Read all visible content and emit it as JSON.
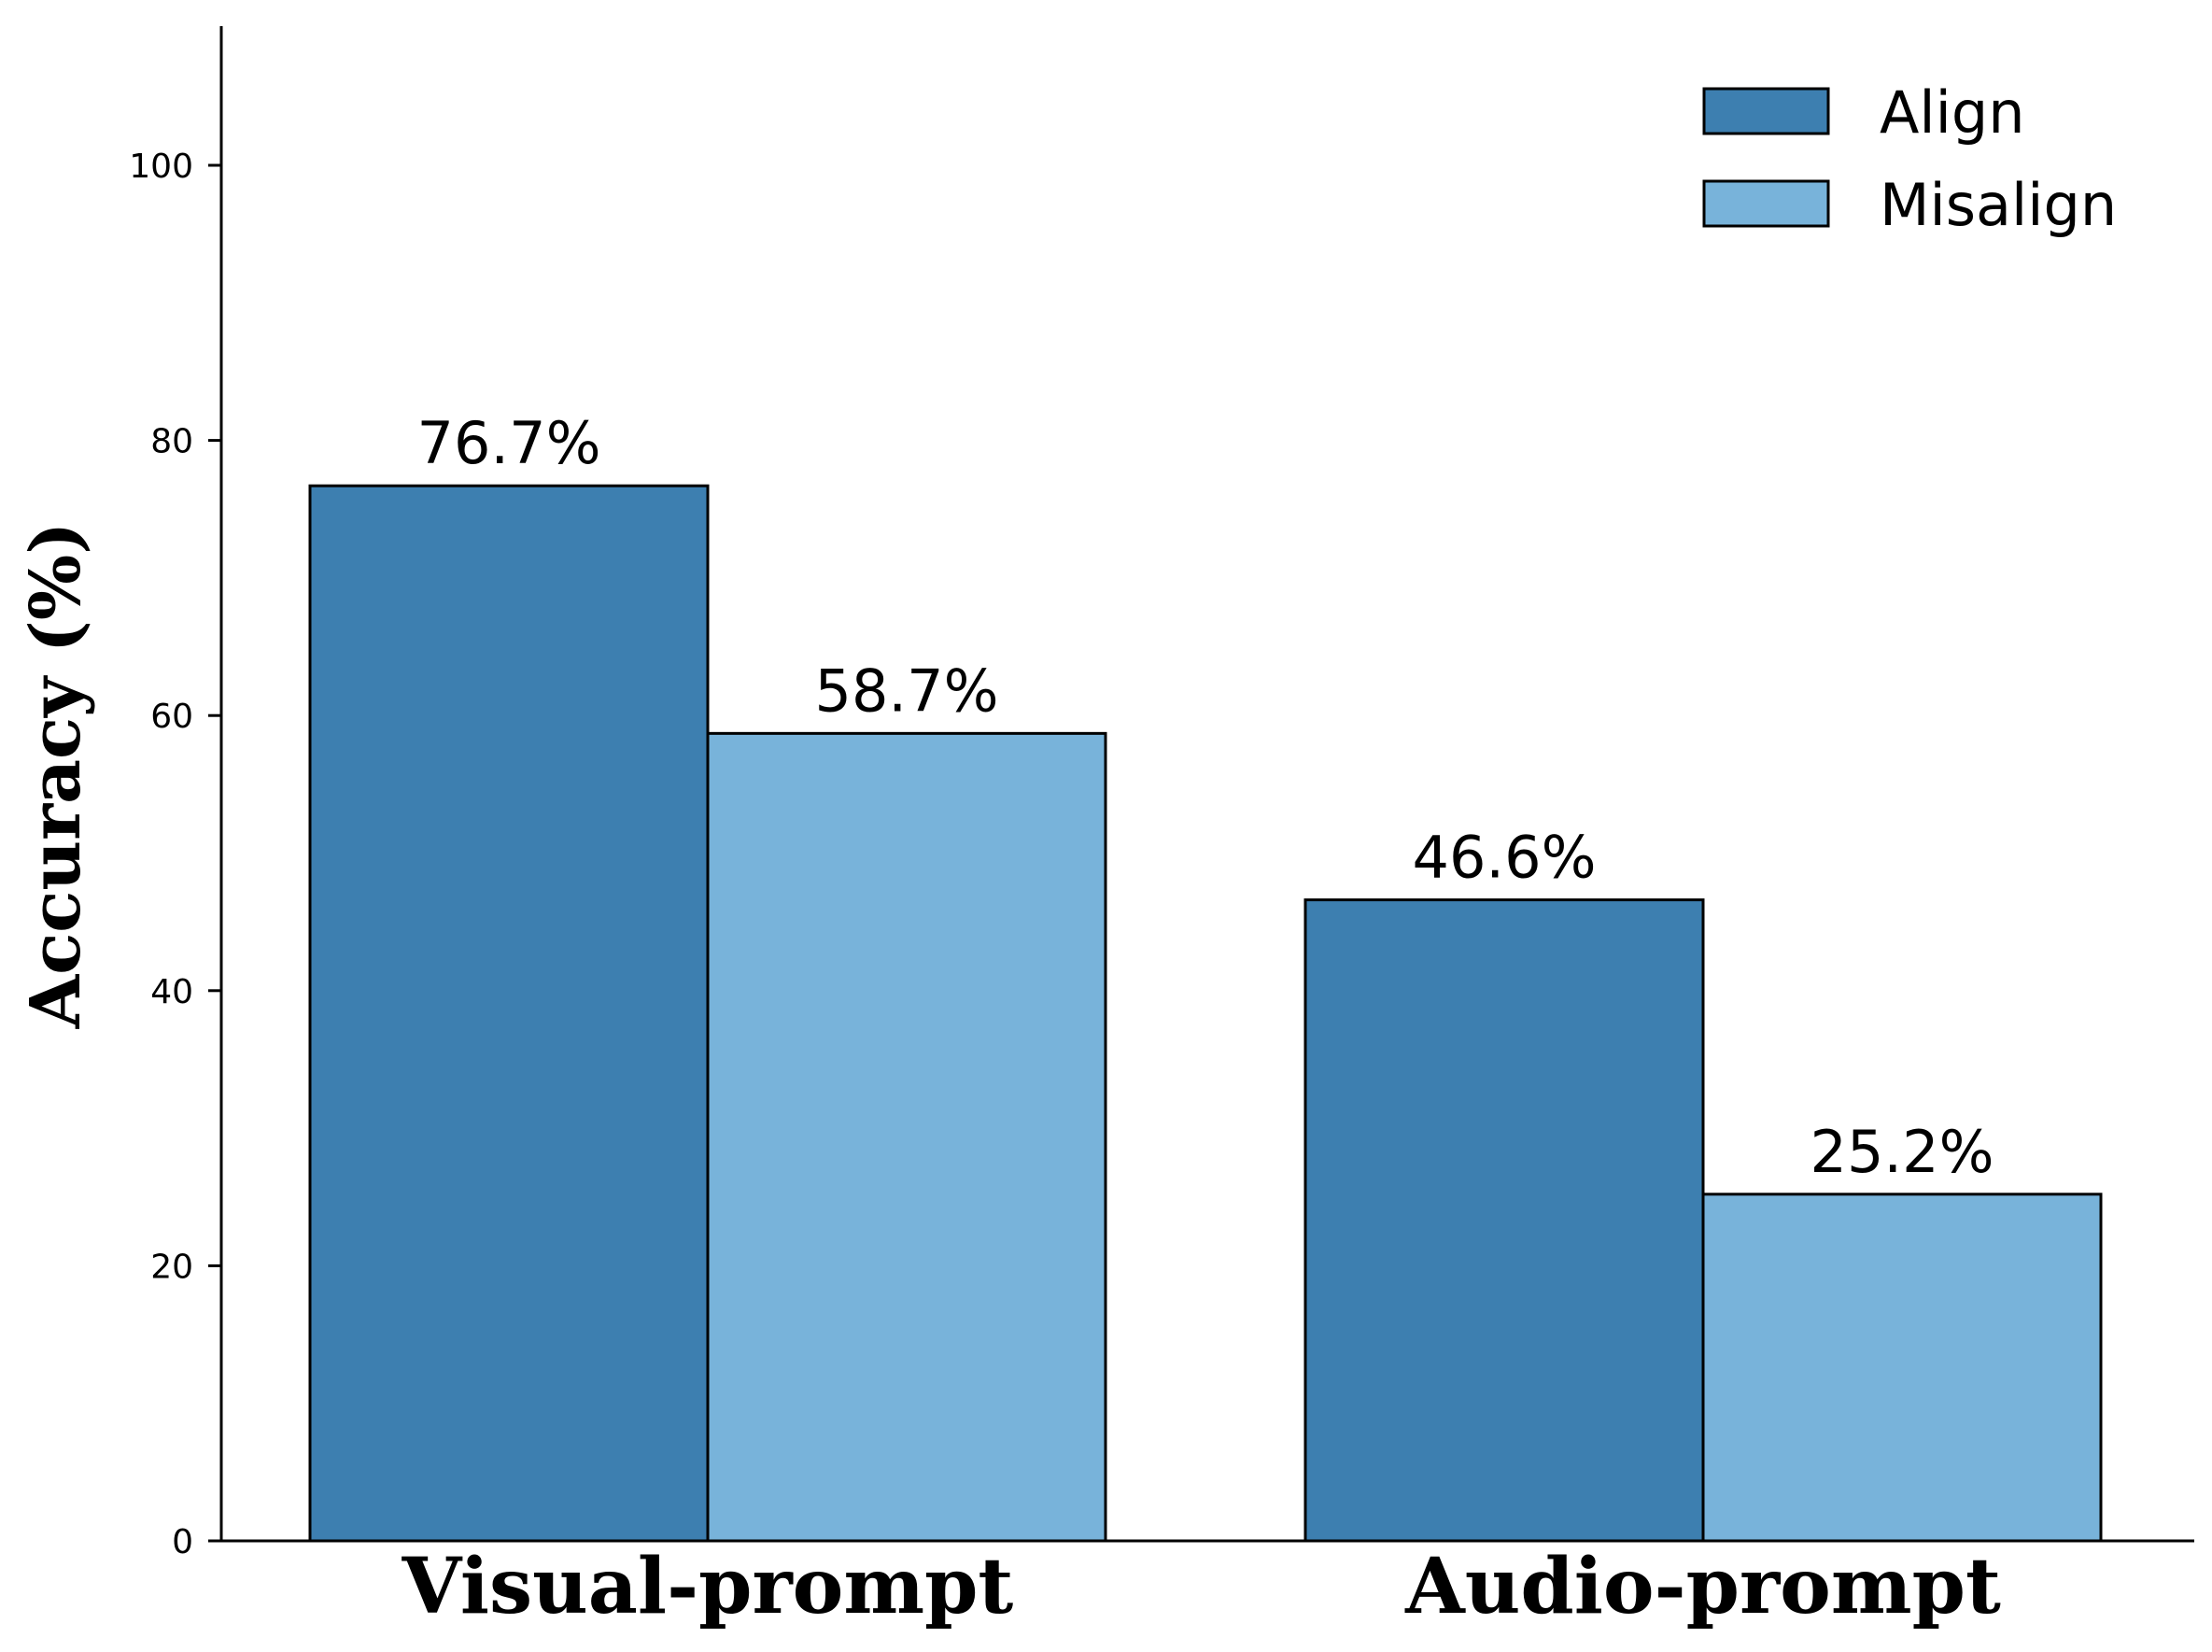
{
  "chart_data": {
    "type": "bar",
    "title": "",
    "xlabel": "",
    "ylabel": "Accuracy (%)",
    "ylim": [
      0,
      110
    ],
    "yticks": [
      0,
      20,
      40,
      60,
      80,
      100
    ],
    "categories": [
      "Visual-prompt",
      "Audio-prompt"
    ],
    "series": [
      {
        "name": "Align",
        "values": [
          76.7,
          46.6
        ],
        "color": "#3d7fb0"
      },
      {
        "name": "Misalign",
        "values": [
          58.7,
          25.2
        ],
        "color": "#78b3da"
      }
    ],
    "data_labels": [
      [
        "76.7%",
        "46.6%"
      ],
      [
        "58.7%",
        "25.2%"
      ]
    ],
    "legend_position": "top-right",
    "grid": false
  }
}
